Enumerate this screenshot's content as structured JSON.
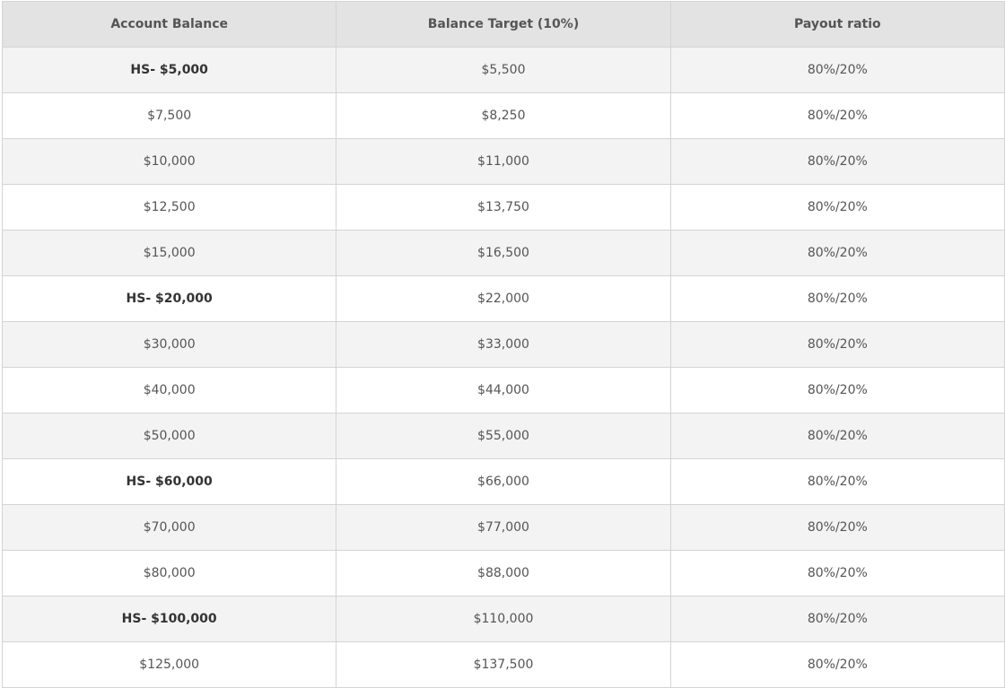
{
  "table": {
    "header": [
      "Account Balance",
      "Balance Target (10%)",
      "Payout ratio"
    ],
    "rows": [
      [
        "HS- $5,000",
        "$5,500",
        "80%/20%"
      ],
      [
        "$7,500",
        "$8,250",
        "80%/20%"
      ],
      [
        "$10,000",
        "$11,000",
        "80%/20%"
      ],
      [
        "$12,500",
        "$13,750",
        "80%/20%"
      ],
      [
        "$15,000",
        "$16,500",
        "80%/20%"
      ],
      [
        "HS- $20,000",
        "$22,000",
        "80%/20%"
      ],
      [
        "$30,000",
        "$33,000",
        "80%/20%"
      ],
      [
        "$40,000",
        "$44,000",
        "80%/20%"
      ],
      [
        "$50,000",
        "$55,000",
        "80%/20%"
      ],
      [
        "HS- $60,000",
        "$66,000",
        "80%/20%"
      ],
      [
        "$70,000",
        "$77,000",
        "80%/20%"
      ],
      [
        "$80,000",
        "$88,000",
        "80%/20%"
      ],
      [
        "HS- $100,000",
        "$110,000",
        "80%/20%"
      ],
      [
        "$125,000",
        "$137,500",
        "80%/20%"
      ]
    ],
    "bold_rows": [
      0,
      5,
      9,
      12
    ]
  }
}
